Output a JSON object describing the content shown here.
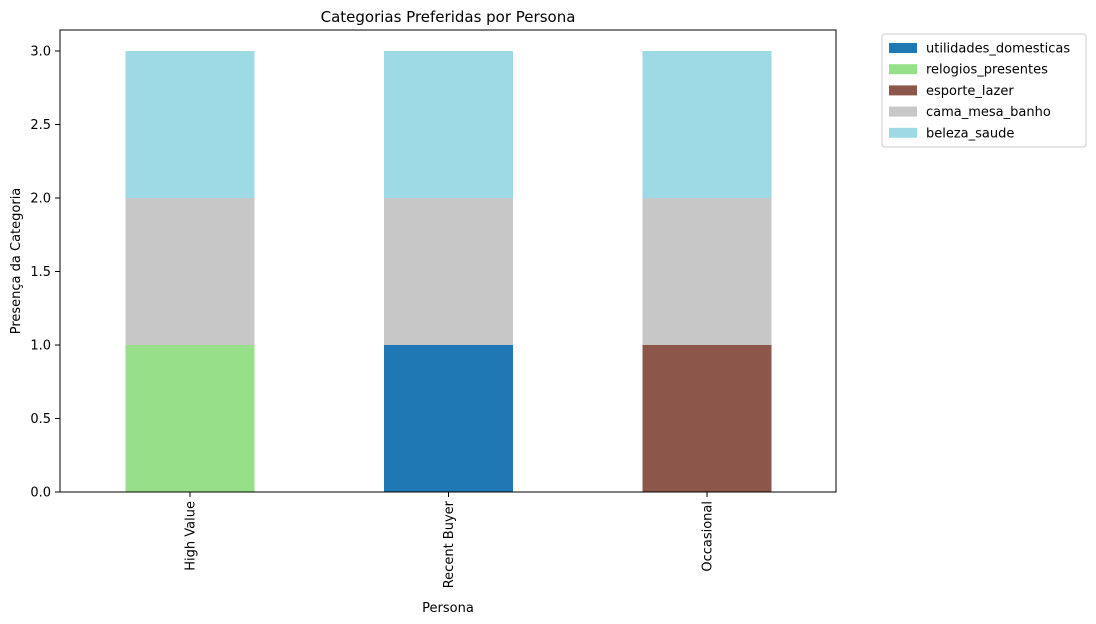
{
  "chart_data": {
    "type": "bar",
    "stacked": true,
    "title": "Categorias Preferidas por Persona",
    "xlabel": "Persona",
    "ylabel": "Presença da Categoria",
    "categories": [
      "High Value",
      "Recent Buyer",
      "Occasional"
    ],
    "ylim": [
      0,
      3.0
    ],
    "yticks": [
      "0.0",
      "0.5",
      "1.0",
      "1.5",
      "2.0",
      "2.5",
      "3.0"
    ],
    "legend_position": "outside-top-right",
    "grid": false,
    "series": [
      {
        "name": "utilidades_domesticas",
        "color": "#1f77b4",
        "values": [
          0,
          1,
          0
        ]
      },
      {
        "name": "relogios_presentes",
        "color": "#98df8a",
        "values": [
          1,
          0,
          0
        ]
      },
      {
        "name": "esporte_lazer",
        "color": "#8c564b",
        "values": [
          0,
          0,
          1
        ]
      },
      {
        "name": "cama_mesa_banho",
        "color": "#c7c7c7",
        "values": [
          1,
          1,
          1
        ]
      },
      {
        "name": "beleza_saude",
        "color": "#9edae5",
        "values": [
          1,
          1,
          1
        ]
      }
    ]
  }
}
